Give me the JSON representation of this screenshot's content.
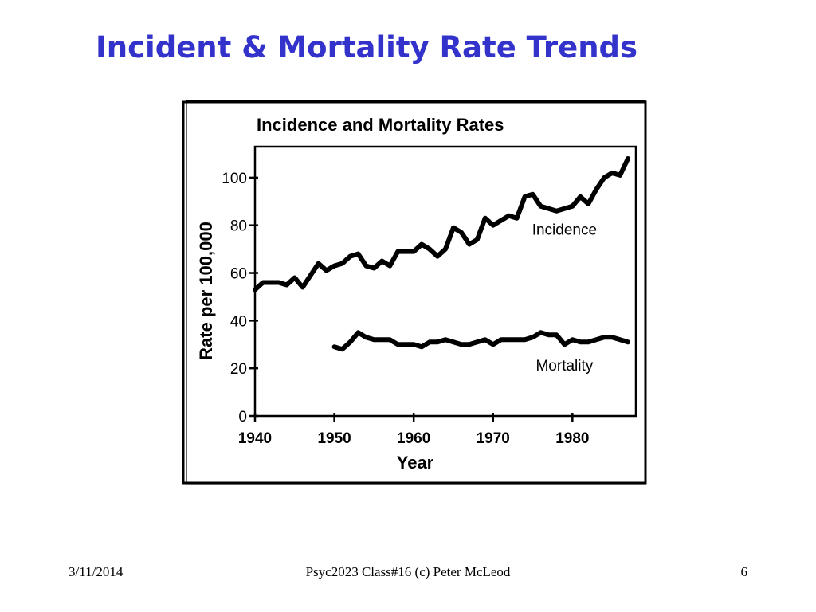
{
  "slide": {
    "title": "Incident & Mortality Rate Trends"
  },
  "footer": {
    "date": "3/11/2014",
    "center": "Psyc2023 Class#16 (c) Peter McLeod",
    "page": "6"
  },
  "colors": {
    "title": "#3333cc",
    "ink": "#000000"
  },
  "chart_data": {
    "type": "line",
    "title": "Incidence and Mortality Rates",
    "xlabel": "Year",
    "ylabel": "Rate per 100,000",
    "xlim": [
      1940,
      1988
    ],
    "ylim": [
      0,
      113
    ],
    "xticks": [
      1940,
      1950,
      1960,
      1970,
      1980
    ],
    "xtick_labels": [
      "1940",
      "1950",
      "1960",
      "1970",
      "1980"
    ],
    "yticks": [
      0,
      20,
      40,
      60,
      80,
      100
    ],
    "ytick_labels": [
      "0",
      "20",
      "40",
      "60",
      "80",
      "100"
    ],
    "grid": false,
    "legend": "none; series are labeled inline next to their lines",
    "series": [
      {
        "name": "Incidence",
        "x": [
          1940,
          1941,
          1942,
          1943,
          1944,
          1945,
          1946,
          1947,
          1948,
          1949,
          1950,
          1951,
          1952,
          1953,
          1954,
          1955,
          1956,
          1957,
          1958,
          1959,
          1960,
          1961,
          1962,
          1963,
          1964,
          1965,
          1966,
          1967,
          1968,
          1969,
          1970,
          1971,
          1972,
          1973,
          1974,
          1975,
          1976,
          1977,
          1978,
          1979,
          1980,
          1981,
          1982,
          1983,
          1984,
          1985,
          1986,
          1987
        ],
        "values": [
          53,
          56,
          56,
          56,
          55,
          58,
          54,
          59,
          64,
          61,
          63,
          64,
          67,
          68,
          63,
          62,
          65,
          63,
          69,
          69,
          69,
          72,
          70,
          67,
          70,
          79,
          77,
          72,
          74,
          83,
          80,
          82,
          84,
          83,
          92,
          93,
          88,
          87,
          86,
          87,
          88,
          92,
          89,
          95,
          100,
          102,
          101,
          108
        ]
      },
      {
        "name": "Mortality",
        "x": [
          1950,
          1951,
          1952,
          1953,
          1954,
          1955,
          1956,
          1957,
          1958,
          1959,
          1960,
          1961,
          1962,
          1963,
          1964,
          1965,
          1966,
          1967,
          1968,
          1969,
          1970,
          1971,
          1972,
          1973,
          1974,
          1975,
          1976,
          1977,
          1978,
          1979,
          1980,
          1981,
          1982,
          1983,
          1984,
          1985,
          1986,
          1987
        ],
        "values": [
          29,
          28,
          31,
          35,
          33,
          32,
          32,
          32,
          30,
          30,
          30,
          29,
          31,
          31,
          32,
          31,
          30,
          30,
          31,
          32,
          30,
          32,
          32,
          32,
          32,
          33,
          35,
          34,
          34,
          30,
          32,
          31,
          31,
          32,
          33,
          33,
          32,
          31
        ]
      }
    ],
    "annotations": [
      {
        "text": "Incidence",
        "x": 1979,
        "y": 76
      },
      {
        "text": "Mortality",
        "x": 1979,
        "y": 19
      }
    ]
  }
}
